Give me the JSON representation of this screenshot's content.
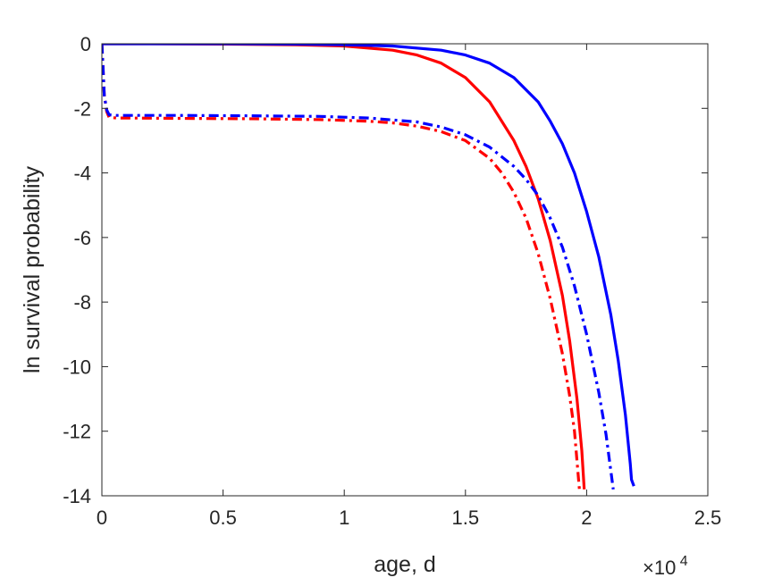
{
  "chart_data": {
    "type": "line",
    "title": "",
    "xlabel": "age, d",
    "ylabel": "ln survival probability",
    "x_multiplier": {
      "base": "×10",
      "exponent": "4"
    },
    "xlim": [
      0,
      25000
    ],
    "ylim": [
      -14,
      0
    ],
    "x_ticks": [
      0,
      5000,
      10000,
      15000,
      20000,
      25000
    ],
    "x_tick_labels": [
      "0",
      "0.5",
      "1",
      "1.5",
      "2",
      "2.5"
    ],
    "y_ticks": [
      0,
      -2,
      -4,
      -6,
      -8,
      -10,
      -12,
      -14
    ],
    "y_tick_labels": [
      "0",
      "-2",
      "-4",
      "-6",
      "-8",
      "-10",
      "-12",
      "-14"
    ],
    "grid": false,
    "box": true,
    "series": [
      {
        "color": "#ff0000",
        "style": "solid",
        "x": [
          0,
          2000,
          5000,
          8000,
          10000,
          12000,
          13000,
          14000,
          15000,
          16000,
          17000,
          17500,
          18000,
          18500,
          19000,
          19300,
          19600,
          19800,
          19900
        ],
        "y": [
          0,
          0,
          -0.01,
          -0.03,
          -0.07,
          -0.2,
          -0.35,
          -0.6,
          -1.05,
          -1.8,
          -3.0,
          -3.8,
          -4.8,
          -6.1,
          -7.8,
          -9.2,
          -11.0,
          -12.6,
          -13.8
        ]
      },
      {
        "color": "#0000ff",
        "style": "solid",
        "x": [
          0,
          2000,
          5000,
          8000,
          10000,
          12000,
          14000,
          15000,
          16000,
          17000,
          18000,
          18500,
          19000,
          19500,
          20000,
          20500,
          21000,
          21300,
          21600,
          21800,
          21850,
          21950
        ],
        "y": [
          0,
          0,
          0,
          -0.01,
          -0.03,
          -0.07,
          -0.2,
          -0.35,
          -0.6,
          -1.05,
          -1.8,
          -2.4,
          -3.1,
          -4.0,
          -5.2,
          -6.6,
          -8.4,
          -9.8,
          -11.5,
          -13.0,
          -13.5,
          -13.7
        ]
      },
      {
        "color": "#ff0000",
        "style": "dashdot",
        "x": [
          0,
          50,
          100,
          200,
          300,
          600,
          1000,
          3000,
          6000,
          9000,
          11000,
          12000,
          13000,
          14000,
          15000,
          16000,
          16500,
          17000,
          17500,
          18000,
          18500,
          19000,
          19300,
          19500,
          19700
        ],
        "y": [
          0,
          -0.8,
          -1.6,
          -2.1,
          -2.28,
          -2.3,
          -2.3,
          -2.31,
          -2.32,
          -2.35,
          -2.4,
          -2.45,
          -2.55,
          -2.72,
          -3.0,
          -3.55,
          -4.0,
          -4.6,
          -5.4,
          -6.5,
          -7.9,
          -9.6,
          -10.9,
          -12.0,
          -13.8
        ]
      },
      {
        "color": "#0000ff",
        "style": "dashdot",
        "x": [
          0,
          50,
          100,
          200,
          300,
          600,
          1000,
          3000,
          6000,
          9000,
          11000,
          13000,
          14000,
          15000,
          16000,
          17000,
          17500,
          18000,
          18500,
          19000,
          19500,
          20000,
          20500,
          20800,
          21100
        ],
        "y": [
          0,
          -0.8,
          -1.6,
          -2.05,
          -2.2,
          -2.22,
          -2.22,
          -2.22,
          -2.23,
          -2.25,
          -2.3,
          -2.42,
          -2.58,
          -2.82,
          -3.2,
          -3.8,
          -4.2,
          -4.7,
          -5.4,
          -6.3,
          -7.5,
          -9.0,
          -10.8,
          -12.1,
          -13.8
        ]
      }
    ]
  }
}
